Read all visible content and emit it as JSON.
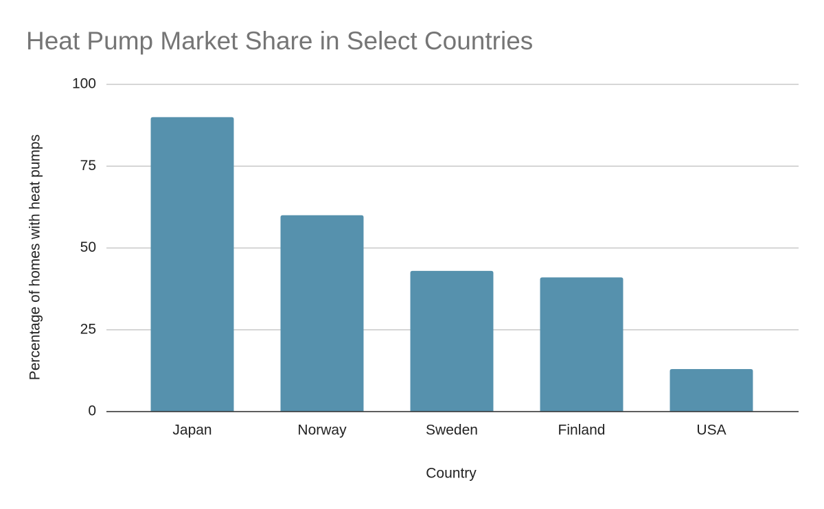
{
  "chart_data": {
    "type": "bar",
    "title": "Heat Pump Market Share in Select Countries",
    "x_label": "Country",
    "y_label": "Percentage of homes with heat pumps",
    "categories": [
      "Japan",
      "Norway",
      "Sweden",
      "Finland",
      "USA"
    ],
    "values": [
      90,
      60,
      43,
      41,
      13
    ],
    "color": "#5691ad",
    "ylim": [
      0,
      100
    ],
    "yticks": [
      0,
      25,
      50,
      75,
      100
    ],
    "grid": true
  }
}
